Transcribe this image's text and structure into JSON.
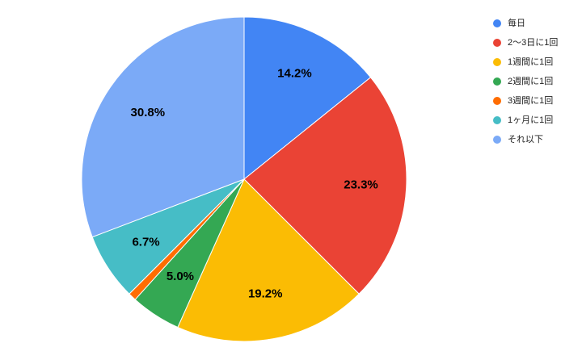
{
  "chart_data": {
    "type": "pie",
    "categories": [
      "毎日",
      "2〜3日に1回",
      "1週間に1回",
      "2週間に1回",
      "3週間に1回",
      "1ヶ月に1回",
      "それ以下"
    ],
    "values": [
      14.2,
      23.3,
      19.2,
      5.0,
      0.8,
      6.7,
      30.8
    ],
    "value_labels": [
      "14.2%",
      "23.3%",
      "19.2%",
      "5.0%",
      null,
      "6.7%",
      "30.8%"
    ],
    "colors": [
      "#4285f4",
      "#ea4335",
      "#fbbc04",
      "#34a853",
      "#ff6d01",
      "#46bdc6",
      "#7baaf7"
    ],
    "legend": "right"
  }
}
